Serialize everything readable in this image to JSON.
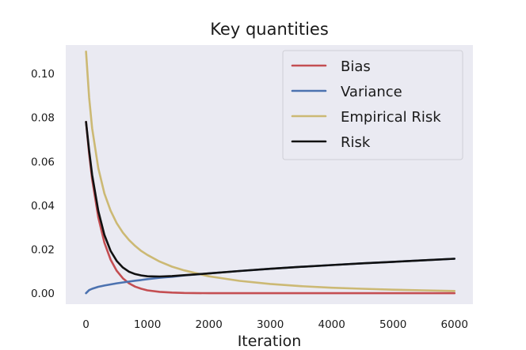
{
  "chart_data": {
    "type": "line",
    "title": "Key quantities",
    "xlabel": "Iteration",
    "ylabel": "",
    "xlim": [
      -330,
      6300
    ],
    "ylim": [
      -0.005,
      0.113
    ],
    "xticks": [
      0,
      1000,
      2000,
      3000,
      4000,
      5000,
      6000
    ],
    "xtick_labels": [
      "0",
      "1000",
      "2000",
      "3000",
      "4000",
      "5000",
      "6000"
    ],
    "yticks": [
      0.0,
      0.02,
      0.04,
      0.06,
      0.08,
      0.1
    ],
    "ytick_labels": [
      "0.00",
      "0.02",
      "0.04",
      "0.06",
      "0.08",
      "0.10"
    ],
    "grid": false,
    "legend_position": "upper-right",
    "colors": {
      "background": "#EAEAF2",
      "bias": "#C44E52",
      "variance": "#4C72B0",
      "empirical_risk": "#CCB974",
      "risk": "#111111"
    },
    "series": [
      {
        "name": "Bias",
        "color": "#C44E52",
        "x": [
          0,
          50,
          100,
          200,
          300,
          400,
          500,
          600,
          700,
          800,
          900,
          1000,
          1200,
          1400,
          1600,
          2000,
          2500,
          3000,
          4000,
          5000,
          6000
        ],
        "y": [
          0.078,
          0.0636,
          0.0519,
          0.0345,
          0.023,
          0.0153,
          0.0102,
          0.0068,
          0.0045,
          0.003,
          0.002,
          0.0013,
          0.0006,
          0.0003,
          0.0001,
          0.0,
          0.0,
          0.0,
          0.0,
          0.0,
          0.0
        ]
      },
      {
        "name": "Variance",
        "color": "#4C72B0",
        "x": [
          0,
          50,
          100,
          200,
          300,
          400,
          500,
          600,
          700,
          800,
          900,
          1000,
          1200,
          1400,
          1600,
          2000,
          2500,
          3000,
          3500,
          4000,
          4500,
          5000,
          5500,
          6000
        ],
        "y": [
          0.0,
          0.0014,
          0.002,
          0.0029,
          0.0035,
          0.004,
          0.0045,
          0.0049,
          0.0053,
          0.0057,
          0.006,
          0.0064,
          0.007,
          0.0075,
          0.0081,
          0.009,
          0.0101,
          0.0111,
          0.012,
          0.0128,
          0.0136,
          0.0143,
          0.015,
          0.0157
        ]
      },
      {
        "name": "Empirical Risk",
        "color": "#CCB974",
        "x": [
          0,
          50,
          100,
          200,
          300,
          400,
          500,
          600,
          700,
          800,
          900,
          1000,
          1200,
          1400,
          1600,
          2000,
          2500,
          3000,
          3500,
          4000,
          4500,
          5000,
          5500,
          6000
        ],
        "y": [
          0.11,
          0.0892,
          0.0751,
          0.0569,
          0.0454,
          0.0376,
          0.0319,
          0.0276,
          0.0242,
          0.0215,
          0.0192,
          0.0174,
          0.0144,
          0.0121,
          0.0104,
          0.0077,
          0.0056,
          0.0042,
          0.0032,
          0.0025,
          0.002,
          0.0016,
          0.0013,
          0.001
        ]
      },
      {
        "name": "Risk",
        "color": "#111111",
        "x": [
          0,
          50,
          100,
          200,
          300,
          400,
          500,
          600,
          700,
          800,
          900,
          1000,
          1200,
          1400,
          1600,
          2000,
          2500,
          3000,
          3500,
          4000,
          4500,
          5000,
          5500,
          6000
        ],
        "y": [
          0.078,
          0.065,
          0.0539,
          0.0374,
          0.0265,
          0.0193,
          0.0147,
          0.0117,
          0.0098,
          0.0087,
          0.0081,
          0.0077,
          0.0076,
          0.0078,
          0.0082,
          0.009,
          0.0101,
          0.0111,
          0.012,
          0.0128,
          0.0136,
          0.0143,
          0.015,
          0.0157
        ]
      }
    ]
  }
}
